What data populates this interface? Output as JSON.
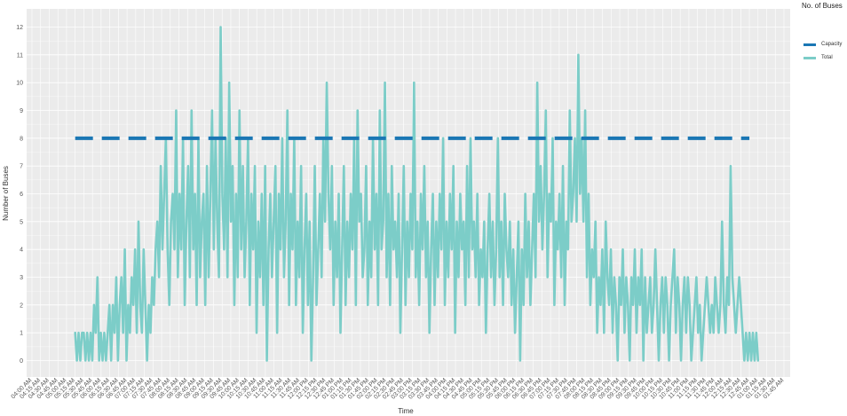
{
  "chart_data": {
    "type": "line",
    "xlabel": "Time",
    "ylabel": "Number of Buses",
    "ylim": [
      -0.7,
      12.7
    ],
    "yticks": [
      0,
      1,
      2,
      3,
      4,
      5,
      6,
      7,
      8,
      9,
      10,
      11,
      12
    ],
    "x_tick_labels": [
      "04:00 AM",
      "04:15 AM",
      "04:30 AM",
      "04:45 AM",
      "05:00 AM",
      "05:15 AM",
      "05:30 AM",
      "05:45 AM",
      "06:00 AM",
      "06:15 AM",
      "06:30 AM",
      "06:45 AM",
      "07:00 AM",
      "07:15 AM",
      "07:30 AM",
      "07:45 AM",
      "08:00 AM",
      "08:15 AM",
      "08:30 AM",
      "08:45 AM",
      "09:00 AM",
      "09:15 AM",
      "09:30 AM",
      "09:45 AM",
      "10:00 AM",
      "10:15 AM",
      "10:30 AM",
      "10:45 AM",
      "11:00 AM",
      "11:15 AM",
      "11:30 AM",
      "11:45 AM",
      "12:00 PM",
      "12:15 PM",
      "12:30 PM",
      "12:45 PM",
      "01:00 PM",
      "01:15 PM",
      "01:30 PM",
      "01:45 PM",
      "02:00 PM",
      "02:15 PM",
      "02:30 PM",
      "02:45 PM",
      "03:00 PM",
      "03:15 PM",
      "03:30 PM",
      "03:45 PM",
      "04:00 PM",
      "04:15 PM",
      "04:30 PM",
      "04:45 PM",
      "05:00 PM",
      "05:15 PM",
      "05:30 PM",
      "05:45 PM",
      "06:00 PM",
      "06:15 PM",
      "06:30 PM",
      "06:45 PM",
      "07:00 PM",
      "07:15 PM",
      "07:30 PM",
      "07:45 PM",
      "08:00 PM",
      "08:15 PM",
      "08:30 PM",
      "08:45 PM",
      "09:00 PM",
      "09:15 PM",
      "09:30 PM",
      "09:45 PM",
      "10:00 PM",
      "10:15 PM",
      "10:30 PM",
      "10:45 PM",
      "11:00 PM",
      "11:15 PM",
      "11:30 PM",
      "11:45 PM",
      "12:00 AM",
      "12:15 AM",
      "12:30 AM",
      "12:45 AM",
      "01:00 AM",
      "01:15 AM",
      "01:30 AM",
      "01:45 AM"
    ],
    "legend_title": "No. of Buses",
    "legend_position": "right",
    "grid": true,
    "colors": {
      "Capacity": "#1a77b4",
      "Total": "#7ccdc8",
      "panel": "#ebebeb",
      "grid": "#ffffff"
    },
    "series": [
      {
        "name": "Capacity",
        "style": "dashed",
        "x": [
          "05:15 AM",
          "12:45 AM"
        ],
        "y": [
          8,
          8
        ]
      },
      {
        "name": "Total",
        "style": "solid",
        "x_start": "05:15 AM",
        "x_end": "01:00 AM",
        "y": [
          1,
          0,
          1,
          0,
          1,
          1,
          0,
          1,
          0,
          1,
          0,
          2,
          1,
          3,
          0,
          1,
          0,
          1,
          0,
          1,
          2,
          0,
          2,
          1,
          3,
          0,
          2,
          3,
          1,
          4,
          0,
          2,
          1,
          3,
          2,
          4,
          1,
          5,
          2,
          1,
          4,
          2,
          0,
          2,
          1,
          3,
          2,
          4,
          5,
          3,
          7,
          4,
          6,
          8,
          4,
          2,
          5,
          6,
          4,
          9,
          3,
          6,
          4,
          8,
          2,
          5,
          7,
          3,
          9,
          4,
          6,
          2,
          8,
          3,
          5,
          6,
          2,
          7,
          3,
          6,
          9,
          4,
          8,
          5,
          3,
          12,
          6,
          4,
          8,
          3,
          10,
          5,
          7,
          2,
          6,
          3,
          9,
          4,
          7,
          3,
          5,
          8,
          2,
          6,
          4,
          7,
          1,
          5,
          3,
          6,
          2,
          7,
          0,
          4,
          6,
          3,
          5,
          7,
          1,
          6,
          4,
          8,
          3,
          5,
          9,
          2,
          6,
          4,
          8,
          2,
          5,
          3,
          7,
          1,
          4,
          6,
          2,
          5,
          0,
          3,
          7,
          2,
          4,
          6,
          3,
          8,
          5,
          10,
          6,
          4,
          7,
          2,
          5,
          3,
          6,
          1,
          4,
          7,
          2,
          5,
          3,
          6,
          4,
          8,
          2,
          9,
          5,
          6,
          3,
          4,
          7,
          2,
          5,
          3,
          8,
          4,
          6,
          2,
          9,
          4,
          5,
          10,
          3,
          6,
          2,
          7,
          4,
          5,
          3,
          6,
          1,
          4,
          7,
          2,
          5,
          3,
          6,
          4,
          10,
          3,
          5,
          2,
          6,
          4,
          7,
          3,
          5,
          1,
          4,
          6,
          2,
          5,
          3,
          6,
          4,
          8,
          2,
          5,
          3,
          6,
          4,
          7,
          1,
          5,
          3,
          6,
          4,
          5,
          2,
          7,
          3,
          8,
          4,
          5,
          3,
          6,
          2,
          4,
          3,
          5,
          1,
          4,
          6,
          3,
          5,
          2,
          4,
          8,
          3,
          5,
          2,
          6,
          4,
          3,
          5,
          2,
          4,
          1,
          3,
          5,
          0,
          4,
          2,
          6,
          3,
          5,
          2,
          4,
          6,
          3,
          10,
          5,
          7,
          4,
          6,
          9,
          3,
          6,
          5,
          8,
          2,
          5,
          4,
          6,
          3,
          7,
          2,
          5,
          4,
          9,
          5,
          6,
          8,
          5,
          11,
          6,
          8,
          5,
          9,
          3,
          6,
          2,
          4,
          3,
          5,
          1,
          3,
          2,
          4,
          1,
          5,
          3,
          2,
          4,
          1,
          3,
          2,
          0,
          3,
          2,
          4,
          1,
          3,
          2,
          0,
          3,
          2,
          4,
          1,
          3,
          2,
          4,
          0,
          3,
          1,
          2,
          3,
          1,
          2,
          4,
          2,
          0,
          2,
          3,
          1,
          3,
          2,
          0,
          2,
          3,
          4,
          1,
          3,
          2,
          0,
          2,
          3,
          1,
          3,
          2,
          0,
          1,
          2,
          3,
          1,
          2,
          0,
          1,
          2,
          3,
          2,
          1,
          2,
          1,
          3,
          2,
          1,
          2,
          5,
          2,
          1,
          3,
          2,
          7,
          3,
          2,
          1,
          2,
          3,
          2,
          1,
          0,
          1,
          0,
          1,
          0,
          1,
          0,
          1,
          0
        ]
      }
    ]
  }
}
